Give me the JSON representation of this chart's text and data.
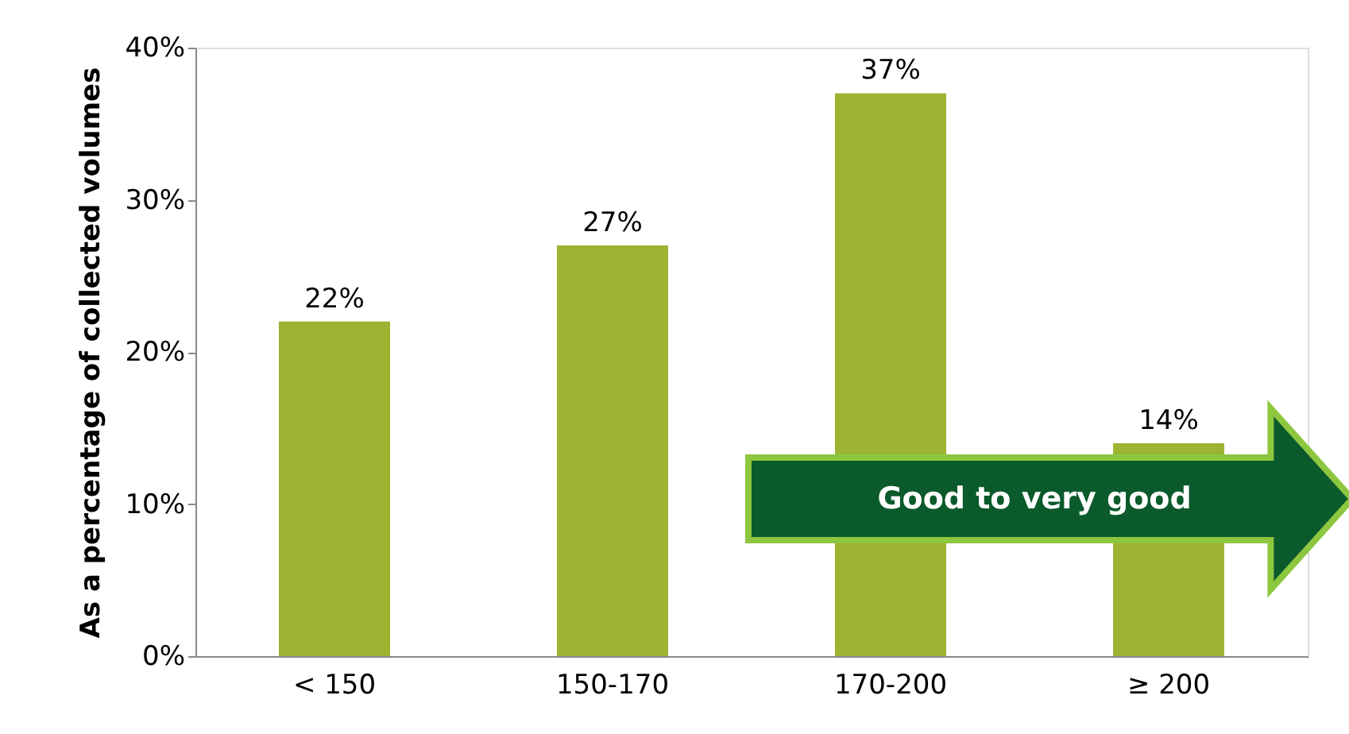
{
  "chart_data": {
    "type": "bar",
    "ylabel": "As a percentage of collected volumes",
    "categories": [
      "< 150",
      "150-170",
      "170-200",
      "≥ 200"
    ],
    "values": [
      22,
      27,
      37,
      14
    ],
    "color": "#9cb431",
    "value_labels": [
      "22%",
      "27%",
      "37%",
      "14%"
    ],
    "ylim": [
      0,
      40
    ],
    "yticks": [
      {
        "value": 0,
        "label": "0%"
      },
      {
        "value": 10,
        "label": "10%"
      },
      {
        "value": 20,
        "label": "20%"
      },
      {
        "value": 30,
        "label": "30%"
      },
      {
        "value": 40,
        "label": "40%"
      }
    ],
    "grid": false,
    "annotations": [
      "Good to very good"
    ]
  }
}
